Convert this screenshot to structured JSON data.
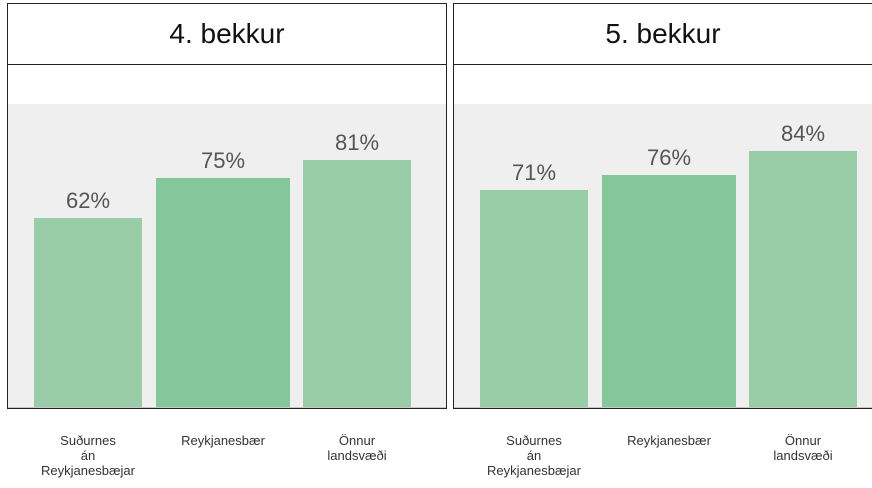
{
  "chart_data": [
    {
      "type": "bar",
      "title": "4. bekkur",
      "categories": [
        "Suðurnes\nán\nReykjanesbæjar",
        "Reykjanesbær",
        "Önnur\nlandsvæði"
      ],
      "values": [
        62,
        75,
        81
      ],
      "value_labels": [
        "62%",
        "75%",
        "81%"
      ],
      "colors": [
        "#99cda8",
        "#83c79a",
        "#99cda8"
      ],
      "ylim": [
        0,
        100
      ]
    },
    {
      "type": "bar",
      "title": "5. bekkur",
      "categories": [
        "Suðurnes\nán\nReykjanesbæjar",
        "Reykjanesbær",
        "Önnur\nlandsvæði"
      ],
      "values": [
        71,
        76,
        84
      ],
      "value_labels": [
        "71%",
        "76%",
        "84%"
      ],
      "colors": [
        "#99cda8",
        "#83c79a",
        "#99cda8"
      ],
      "ylim": [
        0,
        100
      ]
    }
  ]
}
